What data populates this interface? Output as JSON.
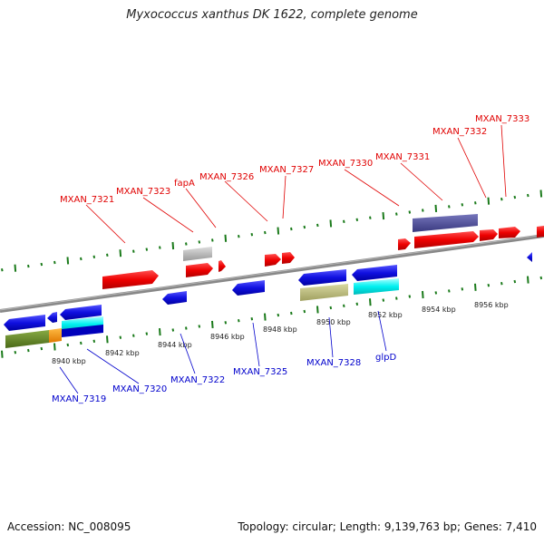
{
  "title": "Myxococcus xanthus DK 1622, complete genome",
  "footer": {
    "accession": "Accession: NC_008095",
    "stats": "Topology: circular; Length: 9,139,763 bp; Genes: 7,410"
  },
  "colors": {
    "top_label": "#e00000",
    "bottom_label": "#0000cc",
    "backbone": "#808080",
    "ticks": "#1a7a1a"
  },
  "tick_labels": [
    "8940 kbp",
    "8942 kbp",
    "8944 kbp",
    "8946 kbp",
    "8948 kbp",
    "8950 kbp",
    "8952 kbp",
    "8954 kbp",
    "8956 kbp"
  ],
  "top_labels": [
    "MXAN_7321",
    "MXAN_7323",
    "fapA",
    "MXAN_7326",
    "MXAN_7327",
    "MXAN_7330",
    "MXAN_7331",
    "MXAN_7332",
    "MXAN_7333"
  ],
  "bottom_labels": [
    "MXAN_7319",
    "MXAN_7320",
    "MXAN_7322",
    "MXAN_7325",
    "MXAN_7328",
    "glpD"
  ]
}
